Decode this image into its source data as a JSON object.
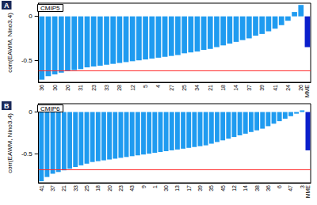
{
  "chart_data": [
    {
      "type": "bar",
      "panel": "A",
      "title": "CMIP5",
      "y_label": "corr(EAWM, Nino3.4)",
      "categories": [
        "36",
        null,
        "30",
        null,
        "20",
        null,
        "31",
        null,
        "23",
        null,
        "33",
        null,
        "28",
        null,
        "12",
        null,
        "5",
        null,
        "4",
        null,
        "27",
        null,
        "25",
        null,
        "34",
        null,
        "21",
        null,
        "18",
        null,
        "14",
        null,
        "37",
        null,
        "39",
        null,
        "41",
        null,
        "24",
        null,
        "26",
        "MME"
      ],
      "values": [
        -0.72,
        -0.68,
        -0.66,
        -0.64,
        -0.62,
        -0.61,
        -0.6,
        -0.58,
        -0.57,
        -0.56,
        -0.55,
        -0.54,
        -0.53,
        -0.52,
        -0.51,
        -0.5,
        -0.49,
        -0.48,
        -0.47,
        -0.46,
        -0.45,
        -0.44,
        -0.42,
        -0.41,
        -0.4,
        -0.38,
        -0.37,
        -0.35,
        -0.33,
        -0.31,
        -0.29,
        -0.27,
        -0.25,
        -0.22,
        -0.2,
        -0.17,
        -0.14,
        -0.1,
        -0.05,
        0.05,
        0.13,
        -0.35
      ],
      "colors": [
        "#1f9bf0",
        "#1f9bf0",
        "#1f9bf0",
        "#1f9bf0",
        "#1f9bf0",
        "#1f9bf0",
        "#1f9bf0",
        "#1f9bf0",
        "#1f9bf0",
        "#1f9bf0",
        "#1f9bf0",
        "#1f9bf0",
        "#1f9bf0",
        "#1f9bf0",
        "#1f9bf0",
        "#1f9bf0",
        "#1f9bf0",
        "#1f9bf0",
        "#1f9bf0",
        "#1f9bf0",
        "#1f9bf0",
        "#1f9bf0",
        "#1f9bf0",
        "#1f9bf0",
        "#1f9bf0",
        "#1f9bf0",
        "#1f9bf0",
        "#1f9bf0",
        "#1f9bf0",
        "#1f9bf0",
        "#1f9bf0",
        "#1f9bf0",
        "#1f9bf0",
        "#1f9bf0",
        "#1f9bf0",
        "#1f9bf0",
        "#1f9bf0",
        "#1f9bf0",
        "#1f9bf0",
        "#1f9bf0",
        "#1f9bf0",
        "#0a1fcc"
      ],
      "ylim": [
        -0.75,
        0.15
      ],
      "yticks": [
        -0.5,
        0
      ],
      "reference_line": -0.62
    },
    {
      "type": "bar",
      "panel": "B",
      "title": "CMIP6",
      "y_label": "corr(EAWM, Nino3.4)",
      "categories": [
        "41",
        null,
        "37",
        null,
        "21",
        null,
        "33",
        null,
        "25",
        null,
        "18",
        null,
        "20",
        null,
        "23",
        null,
        "43",
        null,
        "9",
        null,
        "1",
        null,
        "30",
        null,
        "13",
        null,
        "17",
        null,
        "39",
        null,
        "35",
        null,
        "45",
        null,
        "12",
        null,
        "14",
        null,
        "38",
        null,
        "36",
        null,
        "6",
        null,
        "47",
        null,
        "3",
        "MME"
      ],
      "values": [
        -0.83,
        -0.78,
        -0.74,
        -0.72,
        -0.7,
        -0.68,
        -0.66,
        -0.64,
        -0.62,
        -0.6,
        -0.59,
        -0.58,
        -0.57,
        -0.56,
        -0.55,
        -0.54,
        -0.53,
        -0.52,
        -0.51,
        -0.5,
        -0.49,
        -0.48,
        -0.47,
        -0.46,
        -0.45,
        -0.44,
        -0.43,
        -0.42,
        -0.41,
        -0.4,
        -0.38,
        -0.36,
        -0.34,
        -0.32,
        -0.3,
        -0.28,
        -0.26,
        -0.24,
        -0.22,
        -0.2,
        -0.17,
        -0.14,
        -0.11,
        -0.08,
        -0.05,
        -0.02,
        0.02,
        -0.46
      ],
      "colors": [
        "#1f9bf0",
        "#1f9bf0",
        "#1f9bf0",
        "#1f9bf0",
        "#1f9bf0",
        "#1f9bf0",
        "#1f9bf0",
        "#1f9bf0",
        "#1f9bf0",
        "#1f9bf0",
        "#1f9bf0",
        "#1f9bf0",
        "#1f9bf0",
        "#1f9bf0",
        "#1f9bf0",
        "#1f9bf0",
        "#1f9bf0",
        "#1f9bf0",
        "#1f9bf0",
        "#1f9bf0",
        "#1f9bf0",
        "#1f9bf0",
        "#1f9bf0",
        "#1f9bf0",
        "#1f9bf0",
        "#1f9bf0",
        "#1f9bf0",
        "#1f9bf0",
        "#1f9bf0",
        "#1f9bf0",
        "#1f9bf0",
        "#1f9bf0",
        "#1f9bf0",
        "#1f9bf0",
        "#1f9bf0",
        "#1f9bf0",
        "#1f9bf0",
        "#1f9bf0",
        "#1f9bf0",
        "#1f9bf0",
        "#1f9bf0",
        "#1f9bf0",
        "#1f9bf0",
        "#1f9bf0",
        "#1f9bf0",
        "#1f9bf0",
        "#1f9bf0",
        "#0a1fcc"
      ],
      "ylim": [
        -0.85,
        0.1
      ],
      "yticks": [
        -0.5,
        0
      ],
      "reference_line": -0.69
    }
  ]
}
